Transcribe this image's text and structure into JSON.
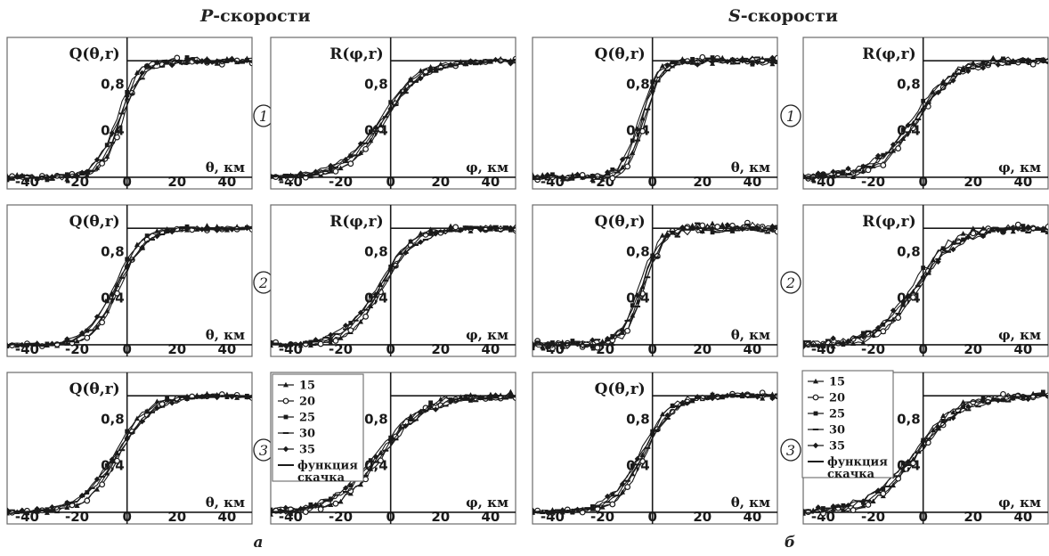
{
  "headers": {
    "left_prefix": "P",
    "left_suffix": "-скорости",
    "right_prefix": "S",
    "right_suffix": "-скорости"
  },
  "row_labels": [
    "1",
    "2",
    "3"
  ],
  "subfig_labels": [
    "а",
    "б"
  ],
  "legend": {
    "entries": [
      "15",
      "20",
      "25",
      "30",
      "35",
      "функция",
      "скачка"
    ]
  },
  "colors": {
    "ink": "#1a1a1a",
    "frame": "#6a6a6a"
  },
  "chart_data": [
    {
      "type": "line",
      "title": "Q(θ,r)",
      "xlabel": "θ, км",
      "xlim": [
        -48,
        50
      ],
      "ylim": [
        -0.1,
        1.2
      ],
      "xticks": [
        -40,
        -20,
        0,
        20,
        40
      ],
      "yticks": [
        0.4,
        0.8
      ],
      "group": "P",
      "row": 1,
      "col": 1,
      "center": -3,
      "width": 4.2,
      "noise": 0.05
    },
    {
      "type": "line",
      "title": "R(φ,r)",
      "xlabel": "φ, км",
      "xlim": [
        -48,
        50
      ],
      "ylim": [
        -0.1,
        1.2
      ],
      "xticks": [
        -40,
        -20,
        0,
        20,
        40
      ],
      "yticks": [
        0.4,
        0.8
      ],
      "group": "P",
      "row": 1,
      "col": 2,
      "center": -3,
      "width": 8,
      "noise": 0.03
    },
    {
      "type": "line",
      "title": "Q(θ,r)",
      "xlabel": "θ, км",
      "xlim": [
        -48,
        50
      ],
      "ylim": [
        -0.1,
        1.2
      ],
      "xticks": [
        -40,
        -20,
        0,
        20,
        40
      ],
      "yticks": [
        0.4,
        0.8
      ],
      "group": "P",
      "row": 2,
      "col": 1,
      "center": -4,
      "width": 5.5,
      "noise": 0.03
    },
    {
      "type": "line",
      "title": "R(φ,r)",
      "xlabel": "φ, км",
      "xlim": [
        -48,
        50
      ],
      "ylim": [
        -0.1,
        1.2
      ],
      "xticks": [
        -40,
        -20,
        0,
        20,
        40
      ],
      "yticks": [
        0.4,
        0.8
      ],
      "group": "P",
      "row": 2,
      "col": 2,
      "center": -4,
      "width": 7,
      "noise": 0.04
    },
    {
      "type": "line",
      "title": "Q(θ,r)",
      "xlabel": "θ, км",
      "xlim": [
        -48,
        50
      ],
      "ylim": [
        -0.1,
        1.2
      ],
      "xticks": [
        -40,
        -20,
        0,
        20,
        40
      ],
      "yticks": [
        0.4,
        0.8
      ],
      "group": "P",
      "row": 3,
      "col": 1,
      "center": -4,
      "width": 7,
      "noise": 0.03
    },
    {
      "type": "line",
      "title": "",
      "xlabel": "φ, км",
      "xlim": [
        -48,
        50
      ],
      "ylim": [
        -0.1,
        1.2
      ],
      "xticks": [
        -40,
        -20,
        0,
        20,
        40
      ],
      "yticks": [
        0.4,
        0.8
      ],
      "group": "P",
      "row": 3,
      "col": 2,
      "center": -4,
      "width": 9,
      "noise": 0.05
    },
    {
      "type": "line",
      "title": "Q(θ,r)",
      "xlabel": "θ, км",
      "xlim": [
        -48,
        50
      ],
      "ylim": [
        -0.1,
        1.2
      ],
      "xticks": [
        -40,
        -20,
        0,
        20,
        40
      ],
      "yticks": [
        0.4,
        0.8
      ],
      "group": "S",
      "row": 1,
      "col": 1,
      "center": -4,
      "width": 3.5,
      "noise": 0.05
    },
    {
      "type": "line",
      "title": "R(φ,r)",
      "xlabel": "φ, км",
      "xlim": [
        -48,
        50
      ],
      "ylim": [
        -0.1,
        1.2
      ],
      "xticks": [
        -40,
        -20,
        0,
        20,
        40
      ],
      "yticks": [
        0.4,
        0.8
      ],
      "group": "S",
      "row": 1,
      "col": 2,
      "center": -3,
      "width": 8,
      "noise": 0.05
    },
    {
      "type": "line",
      "title": "Q(θ,r)",
      "xlabel": "θ, км",
      "xlim": [
        -48,
        50
      ],
      "ylim": [
        -0.1,
        1.2
      ],
      "xticks": [
        -40,
        -20,
        0,
        20,
        40
      ],
      "yticks": [
        0.4,
        0.8
      ],
      "group": "S",
      "row": 2,
      "col": 1,
      "center": -4,
      "width": 4,
      "noise": 0.07
    },
    {
      "type": "line",
      "title": "R(φ,r)",
      "xlabel": "φ, км",
      "xlim": [
        -48,
        50
      ],
      "ylim": [
        -0.1,
        1.2
      ],
      "xticks": [
        -40,
        -20,
        0,
        20,
        40
      ],
      "yticks": [
        0.4,
        0.8
      ],
      "group": "S",
      "row": 2,
      "col": 2,
      "center": -3,
      "width": 8,
      "noise": 0.06
    },
    {
      "type": "line",
      "title": "Q(θ,r)",
      "xlabel": "θ, км",
      "xlim": [
        -48,
        50
      ],
      "ylim": [
        -0.1,
        1.2
      ],
      "xticks": [
        -40,
        -20,
        0,
        20,
        40
      ],
      "yticks": [
        0.4,
        0.8
      ],
      "group": "S",
      "row": 3,
      "col": 1,
      "center": -4,
      "width": 6,
      "noise": 0.04
    },
    {
      "type": "line",
      "title": "",
      "xlabel": "φ, км",
      "xlim": [
        -48,
        50
      ],
      "ylim": [
        -0.1,
        1.2
      ],
      "xticks": [
        -40,
        -20,
        0,
        20,
        40
      ],
      "yticks": [
        0.4,
        0.8
      ],
      "group": "S",
      "row": 3,
      "col": 2,
      "center": -3,
      "width": 9,
      "noise": 0.05
    }
  ]
}
